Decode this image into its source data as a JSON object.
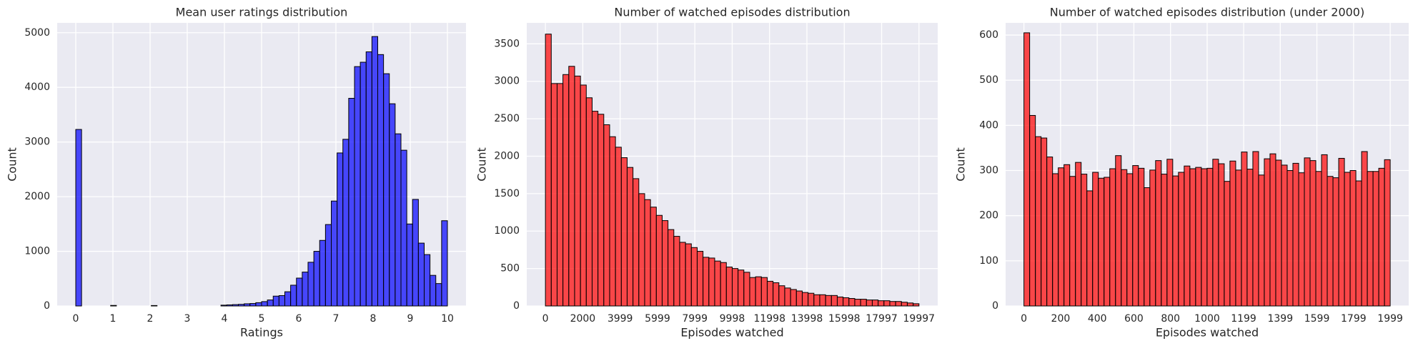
{
  "chart_data": [
    {
      "type": "histogram",
      "title": "Mean user ratings distribution",
      "xlabel": "Ratings",
      "ylabel": "Count",
      "color": "#0000ff",
      "grid": true,
      "bins": [
        0,
        0.15625,
        0.3125,
        0.46875,
        0.625,
        0.78125,
        0.9375,
        1.09375,
        1.25,
        1.40625,
        1.5625,
        1.71875,
        1.875,
        2.03125,
        2.1875,
        2.34375,
        2.5,
        2.65625,
        2.8125,
        2.96875,
        3.125,
        3.28125,
        3.4375,
        3.59375,
        3.75,
        3.90625,
        4.0625,
        4.21875,
        4.375,
        4.53125,
        4.6875,
        4.84375,
        5,
        5.15625,
        5.3125,
        5.46875,
        5.625,
        5.78125,
        5.9375,
        6.09375,
        6.25,
        6.40625,
        6.5625,
        6.71875,
        6.875,
        7.03125,
        7.1875,
        7.34375,
        7.5,
        7.65625,
        7.8125,
        7.96875,
        8.125,
        8.28125,
        8.4375,
        8.59375,
        8.75,
        8.90625,
        9.0625,
        9.21875,
        9.375,
        9.53125,
        9.6875,
        9.84375,
        10
      ],
      "counts": [
        3230,
        0,
        0,
        0,
        0,
        0,
        10,
        0,
        0,
        0,
        0,
        0,
        0,
        8,
        0,
        0,
        0,
        0,
        0,
        0,
        0,
        0,
        0,
        0,
        0,
        15,
        20,
        25,
        30,
        40,
        45,
        60,
        80,
        110,
        180,
        190,
        260,
        380,
        510,
        620,
        800,
        1000,
        1200,
        1490,
        1920,
        2800,
        3050,
        3800,
        4380,
        4460,
        4650,
        4930,
        4600,
        4250,
        3700,
        3150,
        2850,
        1500,
        1950,
        1150,
        940,
        560,
        410,
        1560
      ],
      "xlim": [
        -0.5,
        10.5
      ],
      "ylim": [
        0,
        5180
      ],
      "xticks": [
        0,
        1,
        2,
        3,
        4,
        5,
        6,
        7,
        8,
        9,
        10
      ],
      "yticks": [
        0,
        1000,
        2000,
        3000,
        4000,
        5000
      ]
    },
    {
      "type": "histogram",
      "title": "Number of watched episodes distribution",
      "xlabel": "Episodes watched",
      "ylabel": "Count",
      "color": "#ff0000",
      "grid": true,
      "bins": [
        0,
        312,
        625,
        937,
        1250,
        1562,
        1875,
        2187,
        2500,
        2812,
        3124,
        3437,
        3749,
        4062,
        4374,
        4687,
        4999,
        5312,
        5624,
        5937,
        6249,
        6561,
        6874,
        7186,
        7499,
        7811,
        8124,
        8436,
        8749,
        9061,
        9374,
        9686,
        9999,
        10311,
        10623,
        10936,
        11248,
        11561,
        11873,
        12186,
        12498,
        12810,
        13123,
        13435,
        13748,
        14060,
        14373,
        14685,
        14998,
        15310,
        15623,
        15935,
        16247,
        16560,
        16872,
        17185,
        17497,
        17810,
        18122,
        18435,
        18747,
        19060,
        19372,
        19685,
        19997
      ],
      "counts": [
        3630,
        2970,
        2970,
        3090,
        3200,
        3070,
        2950,
        2780,
        2600,
        2560,
        2420,
        2260,
        2120,
        1980,
        1850,
        1700,
        1500,
        1420,
        1320,
        1210,
        1140,
        1020,
        930,
        850,
        830,
        780,
        730,
        650,
        640,
        600,
        580,
        520,
        500,
        480,
        450,
        380,
        390,
        380,
        330,
        310,
        270,
        240,
        220,
        200,
        180,
        170,
        150,
        150,
        140,
        140,
        120,
        110,
        100,
        90,
        90,
        80,
        80,
        70,
        70,
        60,
        60,
        50,
        40,
        30
      ],
      "xlim": [
        -1000,
        21000
      ],
      "ylim": [
        0,
        3780
      ],
      "xticks": [
        0,
        2000,
        3999,
        5999,
        7999,
        9998,
        11998,
        13998,
        15998,
        17997,
        19997
      ],
      "yticks": [
        0,
        500,
        1000,
        1500,
        2000,
        2500,
        3000,
        3500
      ]
    },
    {
      "type": "histogram",
      "title": "Number of watched episodes distribution (under 2000)",
      "xlabel": "Episodes watched",
      "ylabel": "Count",
      "color": "#ff0000",
      "grid": true,
      "bins": [
        0,
        31.2,
        62.5,
        93.7,
        124.9,
        156.2,
        187.4,
        218.6,
        249.9,
        281.1,
        312.3,
        343.6,
        374.8,
        406,
        437.3,
        468.5,
        499.8,
        531,
        562.2,
        593.5,
        624.7,
        655.9,
        687.2,
        718.4,
        749.6,
        780.9,
        812.1,
        843.3,
        874.6,
        905.8,
        937,
        968.3,
        999.5,
        1030.7,
        1062,
        1093.2,
        1124.4,
        1155.7,
        1186.9,
        1218.1,
        1249.4,
        1280.6,
        1311.8,
        1343.1,
        1374.3,
        1405.5,
        1436.8,
        1468,
        1499.3,
        1530.5,
        1561.7,
        1593,
        1624.2,
        1655.4,
        1686.7,
        1717.9,
        1749.1,
        1780.4,
        1811.6,
        1842.8,
        1874.1,
        1905.3,
        1936.5,
        1967.8,
        1999
      ],
      "counts": [
        605,
        422,
        375,
        372,
        330,
        293,
        306,
        313,
        287,
        318,
        292,
        255,
        296,
        283,
        285,
        304,
        333,
        302,
        293,
        311,
        305,
        262,
        301,
        322,
        292,
        325,
        288,
        296,
        310,
        304,
        307,
        304,
        305,
        325,
        315,
        276,
        321,
        301,
        341,
        303,
        342,
        290,
        326,
        337,
        323,
        312,
        300,
        316,
        295,
        328,
        322,
        298,
        335,
        287,
        284,
        327,
        296,
        300,
        277,
        342,
        298,
        298,
        305,
        324
      ],
      "xlim": [
        -100,
        2100
      ],
      "ylim": [
        0,
        627
      ],
      "xticks": [
        0,
        200,
        400,
        600,
        800,
        1000,
        1199,
        1399,
        1599,
        1799,
        1999
      ],
      "yticks": [
        0,
        100,
        200,
        300,
        400,
        500,
        600
      ]
    }
  ]
}
